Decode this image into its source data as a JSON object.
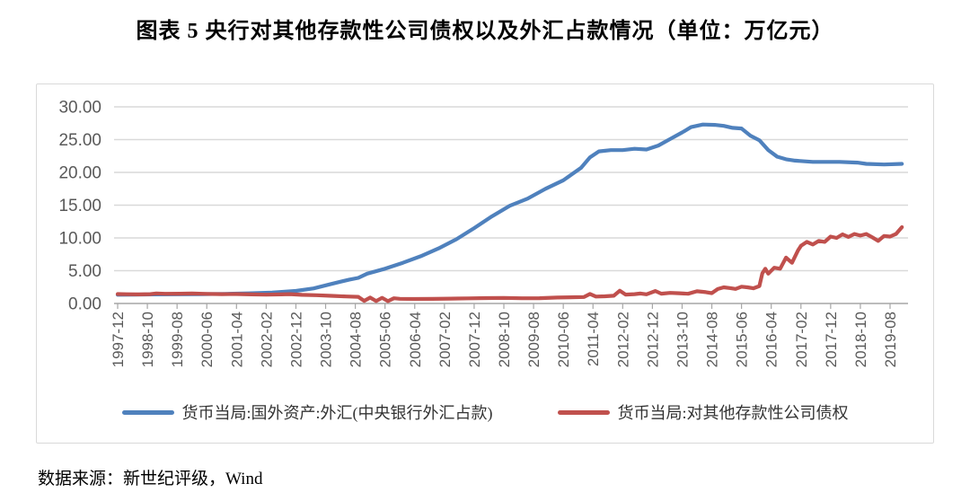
{
  "page": {
    "title": "图表 5  央行对其他存款性公司债权以及外汇占款情况（单位：万亿元）",
    "source": "数据来源：新世纪评级，Wind"
  },
  "colors": {
    "series_blue": "#4F81BD",
    "series_red": "#C0504D",
    "gridline": "#D9D9D9",
    "axis_line": "#A6A6A6",
    "axis_text": "#595959",
    "frame_border": "#D9D9D9"
  },
  "chart_data": {
    "type": "line",
    "title": "图表 5  央行对其他存款性公司债权以及外汇占款情况（单位：万亿元）",
    "unit": "万亿元",
    "xlabel": "",
    "ylabel": "",
    "ylim": [
      0,
      30
    ],
    "ytick_step": 5,
    "ytick_labels": [
      "0.00",
      "5.00",
      "10.00",
      "15.00",
      "20.00",
      "25.00",
      "30.00"
    ],
    "grid": "horizontal",
    "legend_position": "bottom",
    "x_axis_start": "1997-12",
    "x_tick_interval_months": 10,
    "xtick_labels": [
      "1997-12",
      "1998-10",
      "1999-08",
      "2000-06",
      "2001-04",
      "2002-02",
      "2002-12",
      "2003-10",
      "2004-08",
      "2005-06",
      "2006-04",
      "2007-02",
      "2007-12",
      "2008-10",
      "2009-08",
      "2010-06",
      "2011-04",
      "2012-02",
      "2012-12",
      "2013-10",
      "2014-08",
      "2015-06",
      "2016-04",
      "2017-02",
      "2017-12",
      "2018-10",
      "2019-08"
    ],
    "series": [
      {
        "name": "货币当局:国外资产:外汇(中央银行外汇占款)",
        "color": "#4F81BD",
        "points": [
          [
            "1997-12",
            1.33
          ],
          [
            "1998-06",
            1.35
          ],
          [
            "1998-12",
            1.38
          ],
          [
            "1999-08",
            1.4
          ],
          [
            "2000-04",
            1.42
          ],
          [
            "2000-12",
            1.47
          ],
          [
            "2001-08",
            1.55
          ],
          [
            "2002-04",
            1.66
          ],
          [
            "2002-12",
            1.92
          ],
          [
            "2003-06",
            2.3
          ],
          [
            "2003-12",
            2.98
          ],
          [
            "2004-06",
            3.65
          ],
          [
            "2004-09",
            3.9
          ],
          [
            "2004-12",
            4.55
          ],
          [
            "2005-06",
            5.3
          ],
          [
            "2005-12",
            6.2
          ],
          [
            "2006-06",
            7.2
          ],
          [
            "2006-12",
            8.4
          ],
          [
            "2007-06",
            9.8
          ],
          [
            "2007-12",
            11.5
          ],
          [
            "2008-06",
            13.3
          ],
          [
            "2008-12",
            14.9
          ],
          [
            "2009-06",
            16.0
          ],
          [
            "2009-12",
            17.5
          ],
          [
            "2010-06",
            18.8
          ],
          [
            "2010-12",
            20.7
          ],
          [
            "2011-03",
            22.3
          ],
          [
            "2011-06",
            23.2
          ],
          [
            "2011-10",
            23.4
          ],
          [
            "2012-02",
            23.4
          ],
          [
            "2012-06",
            23.6
          ],
          [
            "2012-10",
            23.5
          ],
          [
            "2013-02",
            24.1
          ],
          [
            "2013-06",
            25.1
          ],
          [
            "2013-10",
            26.1
          ],
          [
            "2014-01",
            26.9
          ],
          [
            "2014-05",
            27.3
          ],
          [
            "2014-09",
            27.25
          ],
          [
            "2014-12",
            27.1
          ],
          [
            "2015-03",
            26.8
          ],
          [
            "2015-06",
            26.7
          ],
          [
            "2015-09",
            25.6
          ],
          [
            "2015-12",
            24.9
          ],
          [
            "2016-03",
            23.4
          ],
          [
            "2016-06",
            22.4
          ],
          [
            "2016-09",
            22.0
          ],
          [
            "2016-12",
            21.8
          ],
          [
            "2017-06",
            21.6
          ],
          [
            "2018-03",
            21.6
          ],
          [
            "2018-09",
            21.5
          ],
          [
            "2018-12",
            21.3
          ],
          [
            "2019-06",
            21.2
          ],
          [
            "2019-12",
            21.3
          ]
        ]
      },
      {
        "name": "货币当局:对其他存款性公司债权",
        "color": "#C0504D",
        "points": [
          [
            "1997-12",
            1.44
          ],
          [
            "1998-03",
            1.41
          ],
          [
            "1998-07",
            1.38
          ],
          [
            "1998-11",
            1.42
          ],
          [
            "1999-01",
            1.54
          ],
          [
            "1999-04",
            1.48
          ],
          [
            "1999-09",
            1.5
          ],
          [
            "2000-01",
            1.52
          ],
          [
            "2000-06",
            1.46
          ],
          [
            "2000-11",
            1.43
          ],
          [
            "2001-04",
            1.44
          ],
          [
            "2001-09",
            1.39
          ],
          [
            "2002-02",
            1.34
          ],
          [
            "2002-07",
            1.38
          ],
          [
            "2002-10",
            1.42
          ],
          [
            "2003-02",
            1.32
          ],
          [
            "2003-07",
            1.26
          ],
          [
            "2003-12",
            1.16
          ],
          [
            "2004-05",
            1.07
          ],
          [
            "2004-09",
            1.01
          ],
          [
            "2004-11",
            0.4
          ],
          [
            "2005-01",
            0.9
          ],
          [
            "2005-03",
            0.37
          ],
          [
            "2005-05",
            0.86
          ],
          [
            "2005-07",
            0.35
          ],
          [
            "2005-09",
            0.8
          ],
          [
            "2005-11",
            0.71
          ],
          [
            "2006-04",
            0.68
          ],
          [
            "2006-10",
            0.7
          ],
          [
            "2007-04",
            0.74
          ],
          [
            "2007-10",
            0.78
          ],
          [
            "2008-04",
            0.82
          ],
          [
            "2008-10",
            0.85
          ],
          [
            "2009-04",
            0.79
          ],
          [
            "2009-10",
            0.81
          ],
          [
            "2010-04",
            0.9
          ],
          [
            "2010-10",
            0.96
          ],
          [
            "2011-01",
            0.98
          ],
          [
            "2011-03",
            1.45
          ],
          [
            "2011-05",
            1.06
          ],
          [
            "2011-08",
            1.1
          ],
          [
            "2011-11",
            1.18
          ],
          [
            "2012-01",
            1.95
          ],
          [
            "2012-03",
            1.36
          ],
          [
            "2012-06",
            1.42
          ],
          [
            "2012-08",
            1.52
          ],
          [
            "2012-10",
            1.4
          ],
          [
            "2013-01",
            1.9
          ],
          [
            "2013-03",
            1.5
          ],
          [
            "2013-06",
            1.62
          ],
          [
            "2013-09",
            1.56
          ],
          [
            "2013-12",
            1.48
          ],
          [
            "2014-03",
            1.86
          ],
          [
            "2014-06",
            1.72
          ],
          [
            "2014-08",
            1.58
          ],
          [
            "2014-10",
            2.2
          ],
          [
            "2014-12",
            2.46
          ],
          [
            "2015-02",
            2.36
          ],
          [
            "2015-04",
            2.22
          ],
          [
            "2015-06",
            2.56
          ],
          [
            "2015-08",
            2.46
          ],
          [
            "2015-10",
            2.32
          ],
          [
            "2015-12",
            2.66
          ],
          [
            "2016-01",
            4.6
          ],
          [
            "2016-02",
            5.3
          ],
          [
            "2016-03",
            4.55
          ],
          [
            "2016-05",
            5.45
          ],
          [
            "2016-07",
            5.3
          ],
          [
            "2016-09",
            7.0
          ],
          [
            "2016-11",
            6.2
          ],
          [
            "2017-01",
            8.1
          ],
          [
            "2017-02",
            8.8
          ],
          [
            "2017-04",
            9.4
          ],
          [
            "2017-06",
            9.0
          ],
          [
            "2017-08",
            9.55
          ],
          [
            "2017-10",
            9.4
          ],
          [
            "2017-12",
            10.2
          ],
          [
            "2018-02",
            10.0
          ],
          [
            "2018-04",
            10.55
          ],
          [
            "2018-06",
            10.15
          ],
          [
            "2018-08",
            10.6
          ],
          [
            "2018-10",
            10.35
          ],
          [
            "2018-12",
            10.6
          ],
          [
            "2019-02",
            10.1
          ],
          [
            "2019-04",
            9.55
          ],
          [
            "2019-06",
            10.3
          ],
          [
            "2019-08",
            10.2
          ],
          [
            "2019-10",
            10.6
          ],
          [
            "2019-12",
            11.65
          ]
        ]
      }
    ]
  }
}
